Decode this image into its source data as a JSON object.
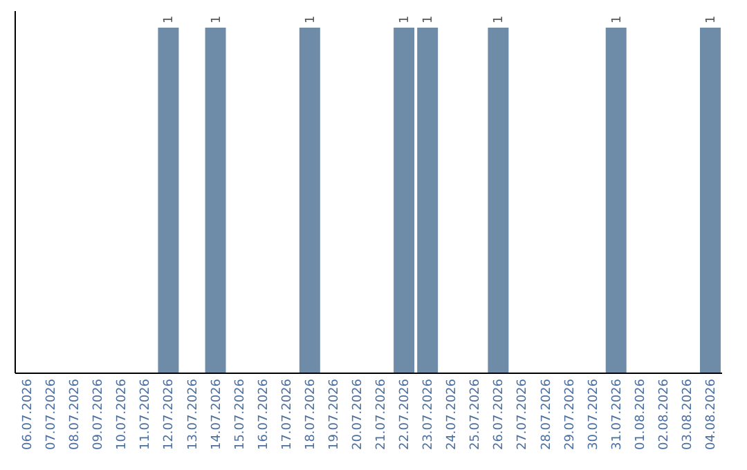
{
  "chart_data": {
    "type": "bar",
    "categories": [
      "06.07.2026",
      "07.07.2026",
      "08.07.2026",
      "09.07.2026",
      "10.07.2026",
      "11.07.2026",
      "12.07.2026",
      "13.07.2026",
      "14.07.2026",
      "15.07.2026",
      "16.07.2026",
      "17.07.2026",
      "18.07.2026",
      "19.07.2026",
      "20.07.2026",
      "21.07.2026",
      "22.07.2026",
      "23.07.2026",
      "24.07.2026",
      "25.07.2026",
      "26.07.2026",
      "27.07.2026",
      "28.07.2026",
      "29.07.2026",
      "30.07.2026",
      "31.07.2026",
      "01.08.2026",
      "02.08.2026",
      "03.08.2026",
      "04.08.2026"
    ],
    "values": [
      0,
      0,
      0,
      0,
      0,
      0,
      1,
      0,
      1,
      0,
      0,
      0,
      1,
      0,
      0,
      0,
      1,
      1,
      0,
      0,
      1,
      0,
      0,
      0,
      0,
      1,
      0,
      0,
      0,
      1
    ],
    "value_labels": [
      null,
      null,
      null,
      null,
      null,
      null,
      "1",
      null,
      "1",
      null,
      null,
      null,
      "1",
      null,
      null,
      null,
      "1",
      "1",
      null,
      null,
      "1",
      null,
      null,
      null,
      null,
      "1",
      null,
      null,
      null,
      "1"
    ],
    "color": "#6e8ca8"
  }
}
